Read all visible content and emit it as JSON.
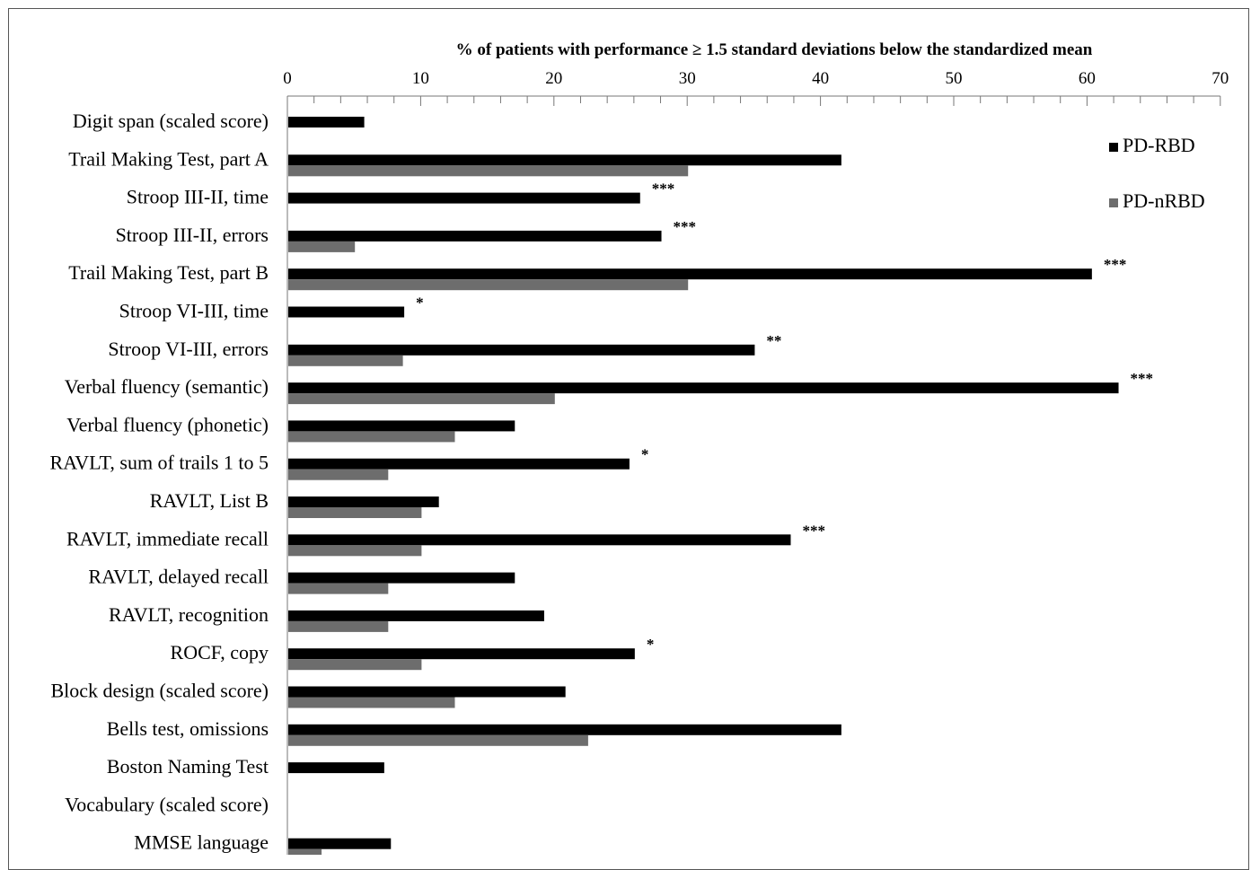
{
  "chart_data": {
    "type": "bar",
    "orientation": "horizontal",
    "title": "% of patients with performance ≥ 1.5 standard deviations below the standardized mean",
    "xlim": [
      0,
      70
    ],
    "x_major_ticks": [
      0,
      10,
      20,
      30,
      40,
      50,
      60,
      70
    ],
    "x_minor_step": 2,
    "axis_position": "top",
    "legend_position": "top-right",
    "grid": false,
    "categories": [
      "Digit span (scaled score)",
      "Trail Making Test, part A",
      "Stroop III-II, time",
      "Stroop III-II, errors",
      "Trail Making Test, part B",
      "Stroop VI-III, time ",
      "Stroop VI-III, errors ",
      "Verbal fluency (semantic)",
      "Verbal fluency (phonetic)",
      "RAVLT, sum of trails 1 to 5",
      "RAVLT, List B",
      "RAVLT, immediate recall",
      "RAVLT, delayed recall",
      "RAVLT, recognition",
      "ROCF, copy",
      "Block design (scaled score)",
      "Bells test, omissions",
      "Boston Naming Test",
      "Vocabulary (scaled score)",
      "MMSE language"
    ],
    "series": [
      {
        "name": "PD-RBD",
        "color": "#000000",
        "values": [
          5.7,
          41.5,
          26.4,
          28.0,
          60.3,
          8.7,
          35.0,
          62.3,
          17.0,
          25.6,
          11.3,
          37.7,
          17.0,
          19.2,
          26.0,
          20.8,
          41.5,
          7.2,
          0,
          7.7
        ]
      },
      {
        "name": "PD-nRBD",
        "color": "#6d6d6d",
        "values": [
          0,
          30.0,
          0,
          5.0,
          30.0,
          0,
          8.6,
          20.0,
          12.5,
          7.5,
          10.0,
          10.0,
          7.5,
          7.5,
          10.0,
          12.5,
          22.5,
          0,
          0,
          2.5
        ]
      }
    ],
    "annotations": [
      "",
      "",
      "***",
      "***",
      "***",
      "*",
      "**",
      "***",
      "",
      "*",
      "",
      "***",
      "",
      "",
      "*",
      "",
      "",
      "",
      "",
      ""
    ]
  }
}
